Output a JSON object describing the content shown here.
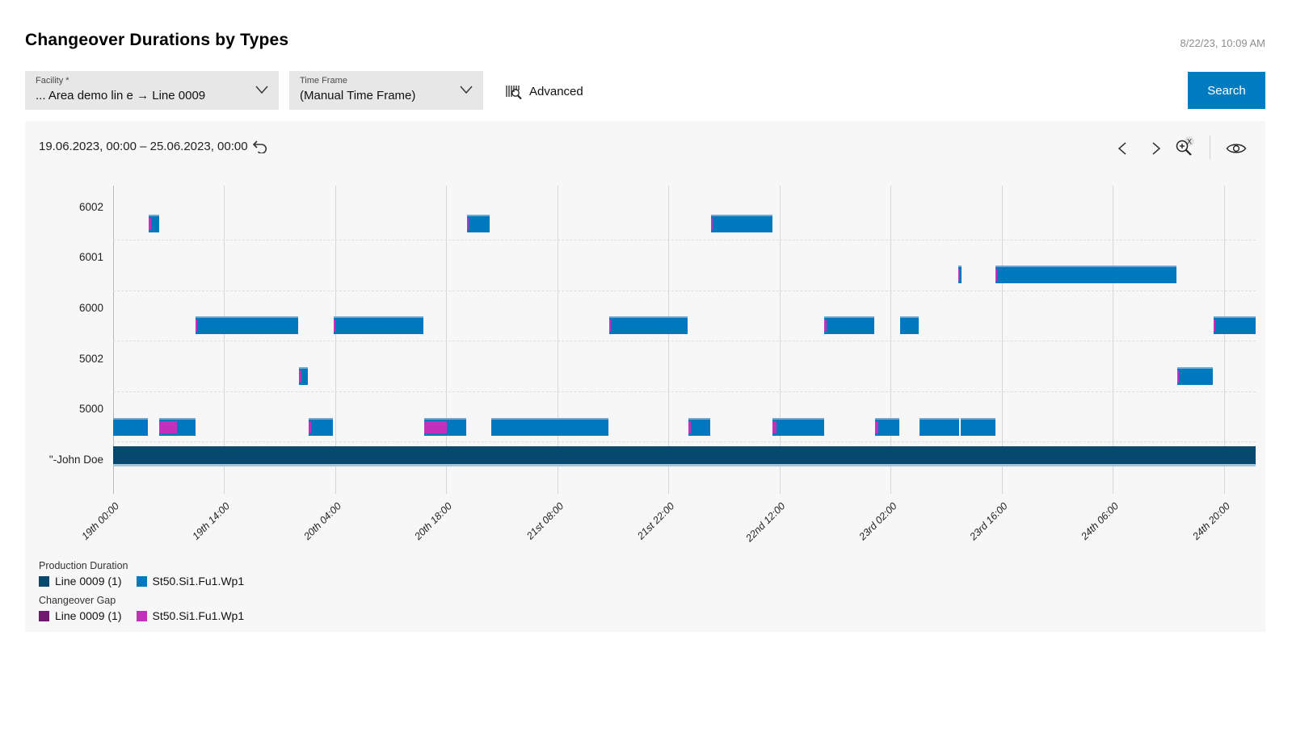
{
  "header": {
    "title": "Changeover Durations by Types",
    "timestamp": "8/22/23, 10:09 AM"
  },
  "filters": {
    "facility": {
      "label": "Facility *",
      "value": "... Area demo lin e → Line 0009"
    },
    "timeframe": {
      "label": "Time Frame",
      "value": "(Manual Time Frame)"
    },
    "advanced_label": "Advanced",
    "search_label": "Search"
  },
  "chart_header": {
    "date_range": "19.06.2023, 00:00 – 25.06.2023, 00:00"
  },
  "colors": {
    "accent_blue": "#007bc0",
    "production_station": "#0078be",
    "production_station_edge": "#6fa9d3",
    "production_line": "#07486e",
    "production_line_edge": "#a9c6d9",
    "gap_station": "#c231bb",
    "gap_line": "#70186f",
    "panel_bg": "#f7f7f8",
    "gridline": "#d6d6dc"
  },
  "legend": {
    "production": {
      "heading": "Production Duration",
      "items": [
        {
          "label": "Line 0009 (1)",
          "color": "#07486e"
        },
        {
          "label": "St50.Si1.Fu1.Wp1",
          "color": "#0078be"
        }
      ]
    },
    "changeover": {
      "heading": "Changeover Gap",
      "items": [
        {
          "label": "Line 0009 (1)",
          "color": "#70186f"
        },
        {
          "label": "St50.Si1.Fu1.Wp1",
          "color": "#c231bb"
        }
      ]
    }
  },
  "chart_data": {
    "type": "bar",
    "variant": "gantt-timeline",
    "title": "Changeover Durations by Types",
    "date_range": "19.06.2023, 00:00 – 25.06.2023, 00:00",
    "hours_origin": "19.06.2023 00:00",
    "x_axis": {
      "unit": "hours since 19.06.2023 00:00",
      "min": 0,
      "max": 144,
      "ticks": [
        {
          "hour": 0,
          "label": "19th 00:00"
        },
        {
          "hour": 14,
          "label": "19th 14:00"
        },
        {
          "hour": 28,
          "label": "20th 04:00"
        },
        {
          "hour": 42,
          "label": "20th 18:00"
        },
        {
          "hour": 56,
          "label": "21st 08:00"
        },
        {
          "hour": 70,
          "label": "21st 22:00"
        },
        {
          "hour": 84,
          "label": "22nd 12:00"
        },
        {
          "hour": 98,
          "label": "23rd 02:00"
        },
        {
          "hour": 112,
          "label": "23rd 16:00"
        },
        {
          "hour": 126,
          "label": "24th 06:00"
        },
        {
          "hour": 140,
          "label": "24th 20:00"
        }
      ]
    },
    "rows": [
      "6002",
      "6001",
      "6000",
      "5002",
      "5000",
      "\"-John Doe"
    ],
    "bars": [
      {
        "row": "6002",
        "series": "St50.Si1.Fu1.Wp1",
        "start_h": 4.48,
        "end_h": 5.8,
        "gap_end_h": 4.79
      },
      {
        "row": "6002",
        "series": "St50.Si1.Fu1.Wp1",
        "start_h": 44.61,
        "end_h": 47.46,
        "gap_end_h": 44.81
      },
      {
        "row": "6002",
        "series": "St50.Si1.Fu1.Wp1",
        "start_h": 75.36,
        "end_h": 83.1,
        "gap_end_h": 75.56
      },
      {
        "row": "6001",
        "series": "St50.Si1.Fu1.Wp1",
        "start_h": 106.52,
        "end_h": 106.93,
        "gap_end_h": 106.72
      },
      {
        "row": "6001",
        "series": "St50.Si1.Fu1.Wp1",
        "start_h": 111.21,
        "end_h": 134.02,
        "gap_end_h": 111.41
      },
      {
        "row": "6000",
        "series": "St50.Si1.Fu1.Wp1",
        "start_h": 10.39,
        "end_h": 23.32,
        "gap_end_h": 10.59
      },
      {
        "row": "6000",
        "series": "St50.Si1.Fu1.Wp1",
        "start_h": 27.8,
        "end_h": 39.11,
        "gap_end_h": 28.0
      },
      {
        "row": "6000",
        "series": "St50.Si1.Fu1.Wp1",
        "start_h": 62.53,
        "end_h": 72.41,
        "gap_end_h": 62.73
      },
      {
        "row": "6000",
        "series": "St50.Si1.Fu1.Wp1",
        "start_h": 89.62,
        "end_h": 95.93,
        "gap_end_h": 89.92
      },
      {
        "row": "6000",
        "series": "St50.Si1.Fu1.Wp1",
        "start_h": 99.19,
        "end_h": 101.53
      },
      {
        "row": "6000",
        "series": "St50.Si1.Fu1.Wp1",
        "start_h": 138.71,
        "end_h": 144.0,
        "gap_end_h": 138.91
      },
      {
        "row": "5002",
        "series": "St50.Si1.Fu1.Wp1",
        "start_h": 23.42,
        "end_h": 24.54,
        "gap_end_h": 23.73
      },
      {
        "row": "5002",
        "series": "St50.Si1.Fu1.Wp1",
        "start_h": 134.12,
        "end_h": 138.6,
        "gap_end_h": 134.32
      },
      {
        "row": "5000",
        "series": "St50.Si1.Fu1.Wp1",
        "start_h": 0.0,
        "end_h": 4.38
      },
      {
        "row": "5000",
        "series": "St50.Si1.Fu1.Wp1",
        "start_h": 5.8,
        "end_h": 10.39,
        "gap_end_h": 8.05
      },
      {
        "row": "5000",
        "series": "St50.Si1.Fu1.Wp1",
        "start_h": 24.64,
        "end_h": 27.7,
        "gap_end_h": 24.95
      },
      {
        "row": "5000",
        "series": "St50.Si1.Fu1.Wp1",
        "start_h": 39.21,
        "end_h": 44.5,
        "gap_end_h": 42.06
      },
      {
        "row": "5000",
        "series": "St50.Si1.Fu1.Wp1",
        "start_h": 47.66,
        "end_h": 62.43
      },
      {
        "row": "5000",
        "series": "St50.Si1.Fu1.Wp1",
        "start_h": 72.51,
        "end_h": 75.26,
        "gap_end_h": 72.82
      },
      {
        "row": "5000",
        "series": "St50.Si1.Fu1.Wp1",
        "start_h": 83.1,
        "end_h": 89.62,
        "gap_end_h": 83.61
      },
      {
        "row": "5000",
        "series": "St50.Si1.Fu1.Wp1",
        "start_h": 96.03,
        "end_h": 99.09,
        "gap_end_h": 96.44
      },
      {
        "row": "5000",
        "series": "St50.Si1.Fu1.Wp1",
        "start_h": 101.63,
        "end_h": 106.62
      },
      {
        "row": "5000",
        "series": "St50.Si1.Fu1.Wp1",
        "start_h": 106.83,
        "end_h": 111.21
      },
      {
        "row": "\"-John Doe",
        "series": "Line 0009 (1)",
        "start_h": 0.0,
        "end_h": 144.0
      }
    ],
    "legend_position": "bottom-left",
    "grid": true
  }
}
